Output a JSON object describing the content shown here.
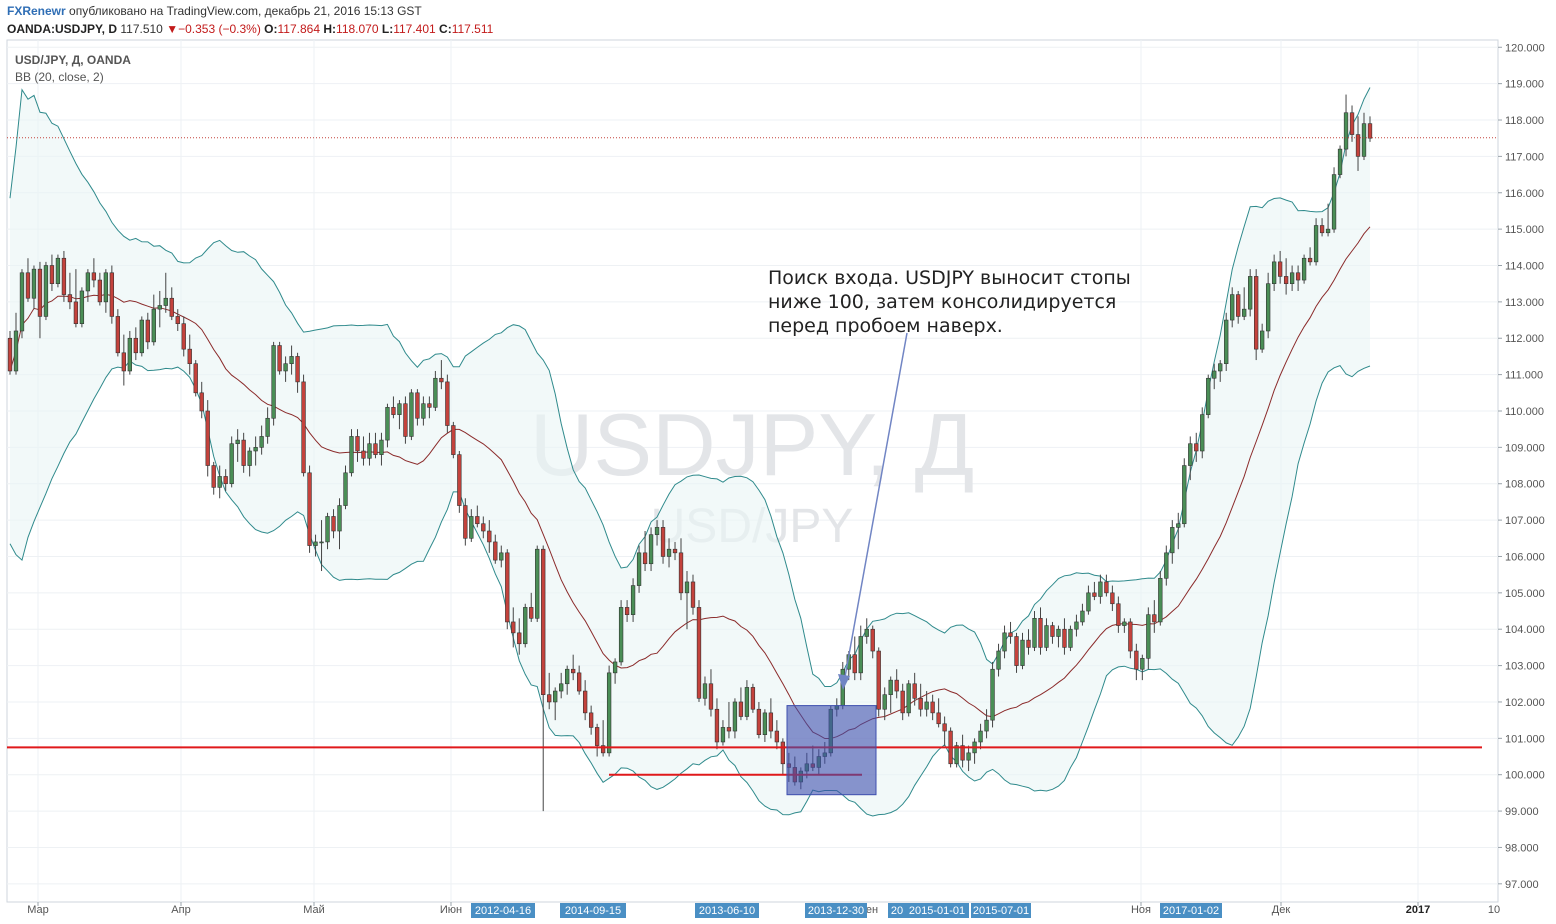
{
  "header": {
    "brand": "FXRenewr",
    "published": "опубликовано на TradingView.com, декабрь 21, 2016 15:13 GST",
    "symbol": "OANDA:USDJPY, D",
    "price": "117.510",
    "change": "−0.353 (−0.3%)",
    "o_label": "O:",
    "o_value": "117.864",
    "h_label": "H:",
    "h_value": "118.070",
    "l_label": "L:",
    "l_value": "117.401",
    "c_label": "C:",
    "c_value": "117.511"
  },
  "overlay": {
    "series_title": "USD/JPY, Д, OANDA",
    "indicator": "BB (20, close, 2)"
  },
  "watermark": {
    "main": "USDJPY, Д",
    "sub": "USD/JPY"
  },
  "annotation": {
    "lines": [
      "Поиск входа. USDJPY выносит стопы",
      "ниже 100, затем консолидируется",
      "перед пробоем наверх."
    ]
  },
  "colors": {
    "up": "#4a8e56",
    "down": "#c4423c",
    "band": "#2f8a8c",
    "basis": "#8b2b2b",
    "support": "#e0191b",
    "box": "#3e4fae",
    "tag": "#4a8fc4"
  },
  "chart_data": {
    "type": "candlestick",
    "ylim": [
      96.5,
      120.2
    ],
    "y_ticks": [
      "97.000",
      "98.000",
      "99.000",
      "100.000",
      "101.000",
      "102.000",
      "103.000",
      "104.000",
      "105.000",
      "106.000",
      "107.000",
      "108.000",
      "109.000",
      "110.000",
      "111.000",
      "112.000",
      "113.000",
      "114.000",
      "115.000",
      "116.000",
      "117.000",
      "118.000",
      "119.000",
      "120.000"
    ],
    "x_labels": [
      "Мар",
      "Апр",
      "Май",
      "Июн",
      "Ноя",
      "Дек",
      "2017"
    ],
    "date_tags": [
      "2012-04-16",
      "2014-09-15",
      "2013-06-10",
      "2013-12-30",
      "20",
      "2015-01-01",
      "2015-07-01",
      "2017-01-02"
    ],
    "x_partial": [
      "ен",
      "10"
    ],
    "last_price": 117.511,
    "support_level": 100.75,
    "stop_level": 100.0,
    "candles": [
      [
        112.0,
        112.2,
        111.0,
        111.1
      ],
      [
        111.1,
        112.7,
        111.0,
        112.2
      ],
      [
        112.2,
        113.9,
        112.0,
        113.8
      ],
      [
        113.8,
        114.2,
        113.0,
        113.1
      ],
      [
        113.1,
        114.0,
        112.8,
        113.9
      ],
      [
        113.9,
        114.1,
        112.0,
        112.6
      ],
      [
        112.6,
        114.1,
        112.5,
        114.0
      ],
      [
        114.0,
        114.3,
        113.3,
        113.5
      ],
      [
        113.5,
        114.3,
        113.4,
        114.2
      ],
      [
        114.2,
        114.4,
        113.0,
        113.2
      ],
      [
        113.2,
        113.8,
        112.8,
        113.0
      ],
      [
        113.0,
        113.9,
        112.3,
        112.4
      ],
      [
        112.4,
        113.4,
        112.3,
        113.3
      ],
      [
        113.3,
        113.9,
        113.0,
        113.8
      ],
      [
        113.8,
        114.2,
        113.4,
        113.6
      ],
      [
        113.6,
        113.8,
        112.9,
        113.0
      ],
      [
        113.0,
        113.9,
        112.7,
        113.8
      ],
      [
        113.8,
        114.0,
        112.4,
        112.6
      ],
      [
        112.6,
        112.8,
        111.5,
        111.6
      ],
      [
        111.6,
        112.1,
        110.7,
        111.1
      ],
      [
        111.1,
        112.2,
        111.0,
        112.0
      ],
      [
        112.0,
        112.3,
        111.4,
        111.6
      ],
      [
        111.6,
        112.6,
        111.5,
        112.5
      ],
      [
        112.5,
        112.7,
        111.7,
        111.9
      ],
      [
        111.9,
        113.2,
        111.8,
        112.8
      ],
      [
        112.8,
        113.3,
        112.3,
        112.9
      ],
      [
        112.9,
        113.8,
        112.7,
        113.1
      ],
      [
        113.1,
        113.4,
        112.5,
        112.6
      ],
      [
        112.6,
        112.8,
        112.2,
        112.4
      ],
      [
        112.4,
        112.6,
        111.5,
        111.7
      ],
      [
        111.7,
        112.1,
        111.0,
        111.3
      ],
      [
        111.3,
        111.4,
        110.4,
        110.5
      ],
      [
        110.5,
        110.8,
        109.8,
        110.0
      ],
      [
        110.0,
        110.3,
        108.2,
        108.5
      ],
      [
        108.5,
        108.6,
        107.7,
        107.9
      ],
      [
        107.9,
        108.5,
        107.6,
        108.2
      ],
      [
        108.2,
        108.4,
        107.8,
        108.0
      ],
      [
        108.0,
        109.3,
        107.9,
        109.1
      ],
      [
        109.1,
        109.5,
        108.6,
        109.2
      ],
      [
        109.2,
        109.4,
        108.3,
        108.5
      ],
      [
        108.5,
        109.0,
        108.2,
        108.9
      ],
      [
        108.9,
        109.3,
        108.5,
        109.0
      ],
      [
        109.0,
        109.6,
        108.8,
        109.3
      ],
      [
        109.3,
        110.1,
        109.1,
        109.8
      ],
      [
        109.8,
        111.9,
        109.6,
        111.8
      ],
      [
        111.8,
        111.9,
        111.0,
        111.1
      ],
      [
        111.1,
        111.5,
        110.8,
        111.3
      ],
      [
        111.3,
        111.8,
        111.0,
        111.5
      ],
      [
        111.5,
        111.6,
        110.5,
        110.8
      ],
      [
        110.8,
        111.0,
        108.2,
        108.3
      ],
      [
        108.3,
        108.5,
        106.1,
        106.3
      ],
      [
        106.3,
        106.6,
        106.0,
        106.4
      ],
      [
        106.4,
        107.0,
        105.6,
        106.4
      ],
      [
        106.4,
        107.2,
        106.2,
        107.1
      ],
      [
        107.1,
        107.3,
        106.5,
        106.7
      ],
      [
        106.7,
        107.6,
        106.2,
        107.4
      ],
      [
        107.4,
        108.5,
        107.3,
        108.3
      ],
      [
        108.3,
        109.5,
        108.2,
        109.3
      ],
      [
        109.3,
        109.5,
        108.6,
        108.9
      ],
      [
        108.9,
        109.3,
        108.5,
        108.7
      ],
      [
        108.7,
        109.4,
        108.5,
        109.1
      ],
      [
        109.1,
        109.4,
        108.7,
        108.8
      ],
      [
        108.8,
        109.4,
        108.5,
        109.2
      ],
      [
        109.2,
        110.2,
        109.0,
        110.1
      ],
      [
        110.1,
        110.4,
        109.8,
        109.9
      ],
      [
        109.9,
        110.3,
        109.5,
        110.2
      ],
      [
        110.2,
        110.4,
        109.1,
        109.3
      ],
      [
        109.3,
        110.6,
        109.2,
        110.5
      ],
      [
        110.5,
        110.6,
        109.6,
        109.8
      ],
      [
        109.8,
        110.4,
        109.6,
        110.2
      ],
      [
        110.2,
        110.4,
        109.8,
        110.1
      ],
      [
        110.1,
        111.1,
        110.0,
        110.9
      ],
      [
        110.9,
        111.4,
        110.6,
        110.8
      ],
      [
        110.8,
        111.0,
        109.4,
        109.6
      ],
      [
        109.6,
        109.7,
        108.7,
        108.8
      ],
      [
        108.8,
        108.9,
        107.2,
        107.4
      ],
      [
        107.4,
        107.6,
        106.3,
        106.5
      ],
      [
        106.5,
        107.3,
        106.4,
        107.1
      ],
      [
        107.1,
        107.4,
        106.8,
        106.9
      ],
      [
        106.9,
        107.1,
        106.5,
        106.7
      ],
      [
        106.7,
        107.0,
        106.1,
        106.4
      ],
      [
        106.4,
        106.6,
        105.8,
        105.9
      ],
      [
        105.9,
        106.3,
        105.7,
        106.1
      ],
      [
        106.1,
        106.2,
        104.0,
        104.2
      ],
      [
        104.2,
        104.6,
        103.5,
        103.9
      ],
      [
        103.9,
        104.3,
        103.3,
        103.6
      ],
      [
        103.6,
        104.7,
        103.5,
        104.6
      ],
      [
        104.6,
        105.0,
        104.2,
        104.3
      ],
      [
        104.3,
        106.3,
        104.2,
        106.2
      ],
      [
        106.2,
        106.3,
        99.0,
        102.2
      ],
      [
        102.2,
        102.8,
        101.8,
        102.0
      ],
      [
        102.0,
        102.4,
        101.5,
        102.3
      ],
      [
        102.3,
        102.8,
        102.1,
        102.5
      ],
      [
        102.5,
        103.0,
        102.2,
        102.9
      ],
      [
        102.9,
        103.3,
        102.6,
        102.8
      ],
      [
        102.8,
        103.0,
        102.2,
        102.3
      ],
      [
        102.3,
        102.6,
        101.5,
        101.7
      ],
      [
        101.7,
        101.9,
        101.1,
        101.3
      ],
      [
        101.3,
        101.4,
        100.5,
        100.8
      ],
      [
        100.8,
        101.5,
        100.5,
        100.6
      ],
      [
        100.6,
        103.0,
        100.5,
        102.8
      ],
      [
        102.8,
        103.2,
        102.5,
        103.1
      ],
      [
        103.1,
        104.8,
        103.0,
        104.6
      ],
      [
        104.6,
        104.8,
        104.2,
        104.4
      ],
      [
        104.4,
        105.4,
        104.2,
        105.2
      ],
      [
        105.2,
        106.3,
        105.0,
        106.1
      ],
      [
        106.1,
        106.7,
        105.6,
        105.8
      ],
      [
        105.8,
        106.8,
        105.6,
        106.6
      ],
      [
        106.6,
        107.0,
        106.3,
        106.8
      ],
      [
        106.8,
        107.0,
        105.8,
        106.0
      ],
      [
        106.0,
        106.5,
        105.7,
        106.2
      ],
      [
        106.2,
        106.4,
        105.9,
        106.1
      ],
      [
        106.1,
        106.5,
        104.8,
        105.0
      ],
      [
        105.0,
        105.6,
        104.0,
        105.3
      ],
      [
        105.3,
        105.5,
        104.4,
        104.6
      ],
      [
        104.6,
        104.8,
        102.0,
        102.1
      ],
      [
        102.1,
        102.7,
        101.9,
        102.5
      ],
      [
        102.5,
        102.9,
        101.6,
        101.8
      ],
      [
        101.8,
        102.1,
        100.7,
        100.9
      ],
      [
        100.9,
        101.5,
        100.8,
        101.3
      ],
      [
        101.3,
        102.0,
        101.0,
        101.2
      ],
      [
        101.2,
        102.1,
        101.0,
        102.0
      ],
      [
        102.0,
        102.4,
        101.5,
        101.6
      ],
      [
        101.6,
        102.6,
        101.5,
        102.4
      ],
      [
        102.4,
        102.5,
        101.7,
        101.8
      ],
      [
        101.8,
        102.0,
        101.0,
        101.1
      ],
      [
        101.1,
        101.8,
        100.9,
        101.7
      ],
      [
        101.7,
        102.1,
        101.0,
        101.2
      ],
      [
        101.2,
        101.5,
        100.7,
        100.9
      ],
      [
        100.9,
        101.0,
        100.0,
        100.3
      ],
      [
        100.3,
        100.6,
        99.8,
        100.2
      ],
      [
        100.2,
        100.5,
        99.7,
        99.8
      ],
      [
        99.8,
        100.2,
        99.6,
        100.1
      ],
      [
        100.1,
        100.6,
        99.9,
        100.3
      ],
      [
        100.3,
        100.8,
        100.1,
        100.2
      ],
      [
        100.2,
        100.7,
        100.0,
        100.5
      ],
      [
        100.5,
        100.9,
        100.3,
        100.6
      ],
      [
        100.6,
        101.9,
        100.5,
        101.8
      ],
      [
        101.8,
        102.1,
        101.6,
        101.9
      ],
      [
        101.9,
        103.1,
        101.8,
        102.9
      ],
      [
        102.9,
        103.4,
        102.6,
        103.3
      ],
      [
        103.3,
        103.8,
        102.6,
        102.8
      ],
      [
        102.8,
        104.1,
        102.6,
        103.8
      ],
      [
        103.8,
        104.3,
        103.6,
        104.0
      ],
      [
        104.0,
        104.1,
        103.2,
        103.4
      ],
      [
        103.4,
        103.5,
        101.6,
        101.8
      ],
      [
        101.8,
        102.4,
        101.5,
        102.2
      ],
      [
        102.2,
        102.7,
        101.7,
        102.6
      ],
      [
        102.6,
        102.9,
        102.1,
        102.3
      ],
      [
        102.3,
        102.5,
        101.5,
        101.7
      ],
      [
        101.7,
        102.6,
        101.6,
        102.5
      ],
      [
        102.5,
        102.8,
        101.9,
        102.1
      ],
      [
        102.1,
        102.5,
        101.6,
        101.8
      ],
      [
        101.8,
        102.3,
        101.6,
        102.0
      ],
      [
        102.0,
        102.2,
        101.5,
        101.7
      ],
      [
        101.7,
        102.1,
        101.3,
        101.4
      ],
      [
        101.4,
        101.6,
        100.8,
        101.2
      ],
      [
        101.2,
        101.3,
        100.2,
        100.3
      ],
      [
        100.3,
        100.9,
        100.2,
        100.8
      ],
      [
        100.8,
        101.1,
        100.2,
        100.4
      ],
      [
        100.4,
        100.8,
        100.1,
        100.6
      ],
      [
        100.6,
        101.0,
        100.3,
        100.9
      ],
      [
        100.9,
        101.4,
        100.7,
        101.2
      ],
      [
        101.2,
        101.8,
        101.0,
        101.5
      ],
      [
        101.5,
        103.1,
        101.3,
        102.9
      ],
      [
        102.9,
        103.6,
        102.7,
        103.4
      ],
      [
        103.4,
        104.1,
        103.2,
        103.9
      ],
      [
        103.9,
        104.2,
        103.6,
        103.8
      ],
      [
        103.8,
        103.9,
        102.8,
        103.0
      ],
      [
        103.0,
        103.9,
        102.9,
        103.7
      ],
      [
        103.7,
        104.0,
        103.3,
        103.5
      ],
      [
        103.5,
        104.5,
        103.4,
        104.3
      ],
      [
        104.3,
        104.6,
        103.3,
        103.5
      ],
      [
        103.5,
        104.3,
        103.4,
        104.1
      ],
      [
        104.1,
        104.2,
        103.6,
        103.8
      ],
      [
        103.8,
        104.1,
        103.5,
        104.0
      ],
      [
        104.0,
        104.3,
        103.3,
        103.5
      ],
      [
        103.5,
        104.1,
        103.4,
        104.0
      ],
      [
        104.0,
        104.4,
        103.8,
        104.2
      ],
      [
        104.2,
        104.7,
        104.1,
        104.5
      ],
      [
        104.5,
        105.2,
        104.4,
        105.0
      ],
      [
        105.0,
        105.3,
        104.8,
        104.9
      ],
      [
        104.9,
        105.5,
        104.7,
        105.3
      ],
      [
        105.3,
        105.5,
        104.9,
        105.0
      ],
      [
        105.0,
        105.2,
        104.5,
        104.7
      ],
      [
        104.7,
        104.9,
        103.9,
        104.1
      ],
      [
        104.1,
        104.3,
        103.9,
        104.2
      ],
      [
        104.2,
        104.3,
        103.2,
        103.4
      ],
      [
        103.4,
        103.6,
        102.6,
        102.9
      ],
      [
        102.9,
        103.3,
        102.6,
        103.2
      ],
      [
        103.2,
        104.6,
        102.9,
        104.4
      ],
      [
        104.4,
        104.8,
        103.9,
        104.2
      ],
      [
        104.2,
        105.6,
        104.1,
        105.4
      ],
      [
        105.4,
        106.3,
        105.2,
        106.1
      ],
      [
        106.1,
        107.0,
        105.8,
        106.8
      ],
      [
        106.8,
        107.2,
        106.2,
        106.9
      ],
      [
        106.9,
        108.7,
        106.8,
        108.5
      ],
      [
        108.5,
        109.3,
        108.1,
        109.1
      ],
      [
        109.1,
        109.4,
        108.6,
        108.9
      ],
      [
        108.9,
        110.1,
        108.7,
        109.9
      ],
      [
        109.9,
        111.0,
        109.8,
        110.9
      ],
      [
        110.9,
        111.3,
        110.6,
        111.1
      ],
      [
        111.1,
        111.4,
        110.8,
        111.3
      ],
      [
        111.3,
        112.7,
        111.1,
        112.5
      ],
      [
        112.5,
        113.4,
        112.3,
        113.2
      ],
      [
        113.2,
        113.3,
        112.4,
        112.6
      ],
      [
        112.6,
        113.4,
        112.5,
        112.8
      ],
      [
        112.8,
        113.9,
        112.6,
        113.7
      ],
      [
        113.7,
        113.9,
        111.4,
        111.7
      ],
      [
        111.7,
        112.4,
        111.6,
        112.2
      ],
      [
        112.2,
        113.8,
        112.0,
        113.5
      ],
      [
        113.5,
        114.3,
        113.3,
        114.1
      ],
      [
        114.1,
        114.4,
        113.5,
        113.7
      ],
      [
        113.7,
        114.2,
        113.2,
        113.5
      ],
      [
        113.5,
        114.0,
        113.3,
        113.8
      ],
      [
        113.8,
        114.0,
        113.3,
        113.6
      ],
      [
        113.6,
        114.3,
        113.5,
        114.2
      ],
      [
        114.2,
        114.5,
        114.0,
        114.1
      ],
      [
        114.1,
        115.3,
        114.0,
        115.1
      ],
      [
        115.1,
        115.3,
        114.8,
        114.9
      ],
      [
        114.9,
        115.7,
        114.8,
        115.0
      ],
      [
        115.0,
        116.7,
        114.9,
        116.5
      ],
      [
        116.5,
        117.3,
        116.4,
        117.2
      ],
      [
        117.2,
        118.7,
        117.0,
        118.2
      ],
      [
        118.2,
        118.4,
        117.4,
        117.6
      ],
      [
        117.6,
        118.1,
        116.6,
        117.0
      ],
      [
        117.0,
        118.2,
        116.9,
        117.9
      ],
      [
        117.9,
        118.1,
        117.4,
        117.5
      ]
    ]
  }
}
